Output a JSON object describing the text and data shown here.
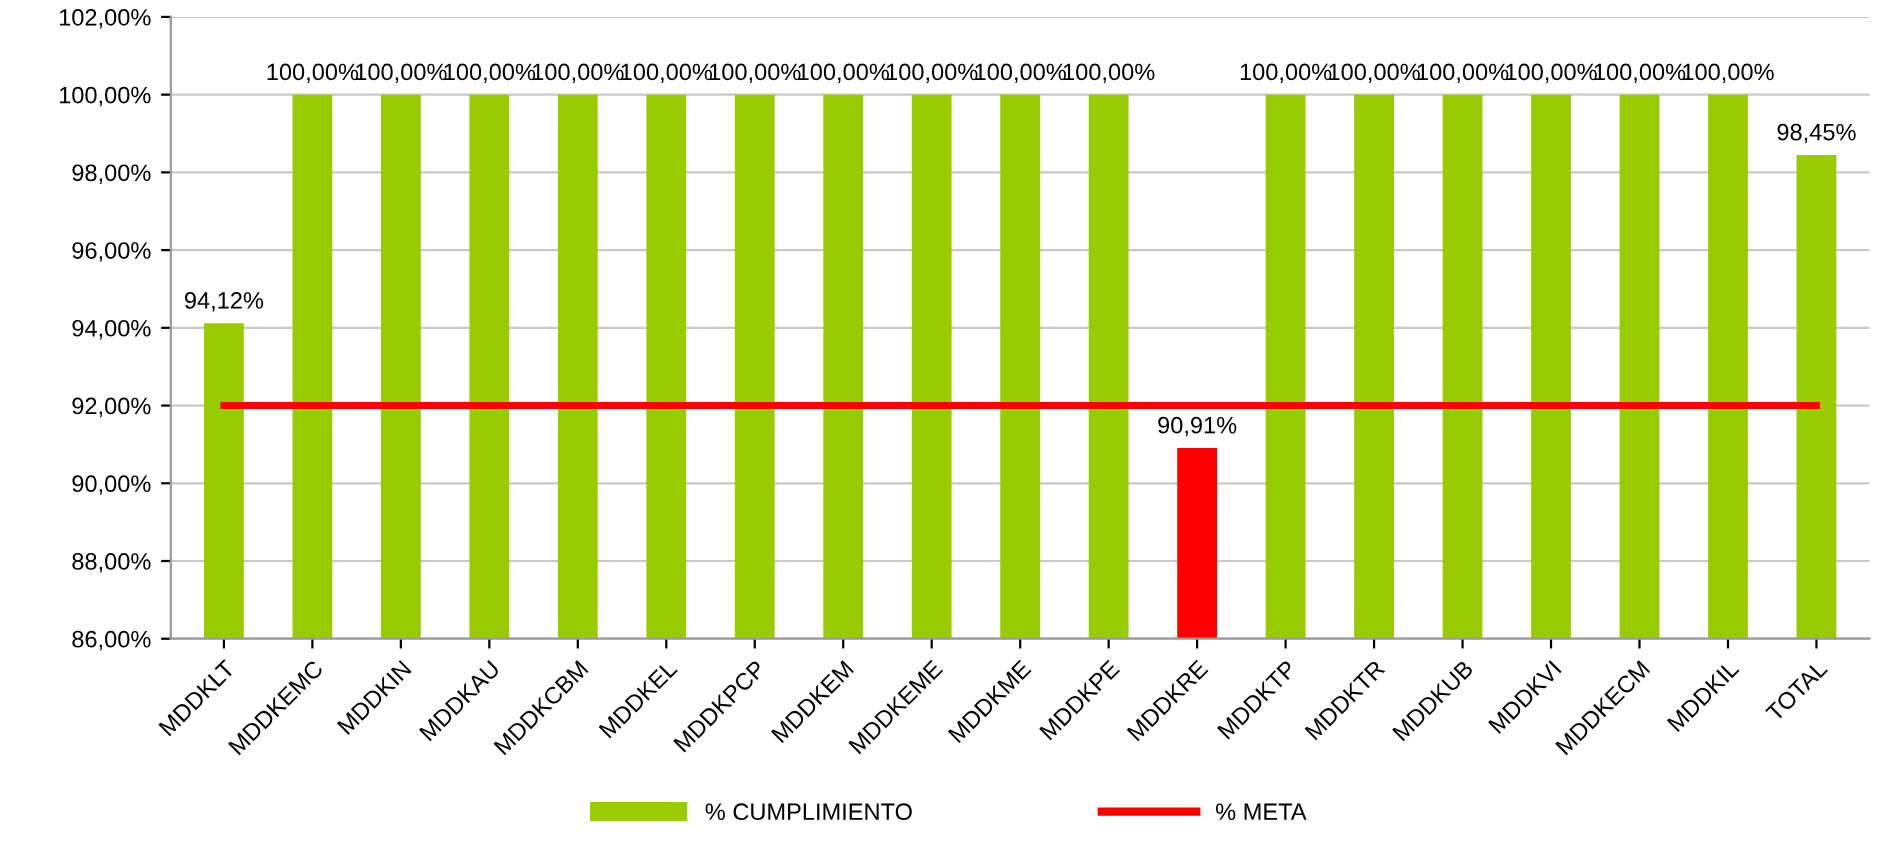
{
  "chart_data": {
    "type": "bar",
    "categories": [
      "MDDKLT",
      "MDDKEMC",
      "MDDKIN",
      "MDDKAU",
      "MDDKCBM",
      "MDDKEL",
      "MDDKPCP",
      "MDDKEM",
      "MDDKEME",
      "MDDKME",
      "MDDKPE",
      "MDDKRE",
      "MDDKTP",
      "MDDKTR",
      "MDDKUB",
      "MDDKVI",
      "MDDKECM",
      "MDDKIL",
      "TOTAL"
    ],
    "series": [
      {
        "name": "% CUMPLIMIENTO",
        "color": "#99cc00",
        "colors": [
          "#99cc00",
          "#99cc00",
          "#99cc00",
          "#99cc00",
          "#99cc00",
          "#99cc00",
          "#99cc00",
          "#99cc00",
          "#99cc00",
          "#99cc00",
          "#99cc00",
          "#ff0000",
          "#99cc00",
          "#99cc00",
          "#99cc00",
          "#99cc00",
          "#99cc00",
          "#99cc00",
          "#99cc00"
        ],
        "values": [
          94.12,
          100,
          100,
          100,
          100,
          100,
          100,
          100,
          100,
          100,
          100,
          90.91,
          100,
          100,
          100,
          100,
          100,
          100,
          98.45
        ],
        "value_labels": [
          "94,12%",
          "100,00%",
          "100,00%",
          "100,00%",
          "100,00%",
          "100,00%",
          "100,00%",
          "100,00%",
          "100,00%",
          "100,00%",
          "100,00%",
          "90,91%",
          "100,00%",
          "100,00%",
          "100,00%",
          "100,00%",
          "100,00%",
          "100,00%",
          "98,45%"
        ]
      },
      {
        "name": "% META",
        "type": "line",
        "color": "#ff0000",
        "values": [
          92,
          92,
          92,
          92,
          92,
          92,
          92,
          92,
          92,
          92,
          92,
          92,
          92,
          92,
          92,
          92,
          92,
          92,
          92
        ]
      }
    ],
    "ylim": [
      86,
      102
    ],
    "yticks": [
      {
        "value": 86,
        "label": "86,00%"
      },
      {
        "value": 88,
        "label": "88,00%"
      },
      {
        "value": 90,
        "label": "90,00%"
      },
      {
        "value": 92,
        "label": "92,00%"
      },
      {
        "value": 94,
        "label": "94,00%"
      },
      {
        "value": 96,
        "label": "96,00%"
      },
      {
        "value": 98,
        "label": "98,00%"
      },
      {
        "value": 100,
        "label": "100,00%"
      },
      {
        "value": 102,
        "label": "102,00%"
      }
    ],
    "grid": "y",
    "legend": "bottom",
    "marker": "none",
    "line_style": "solid"
  }
}
